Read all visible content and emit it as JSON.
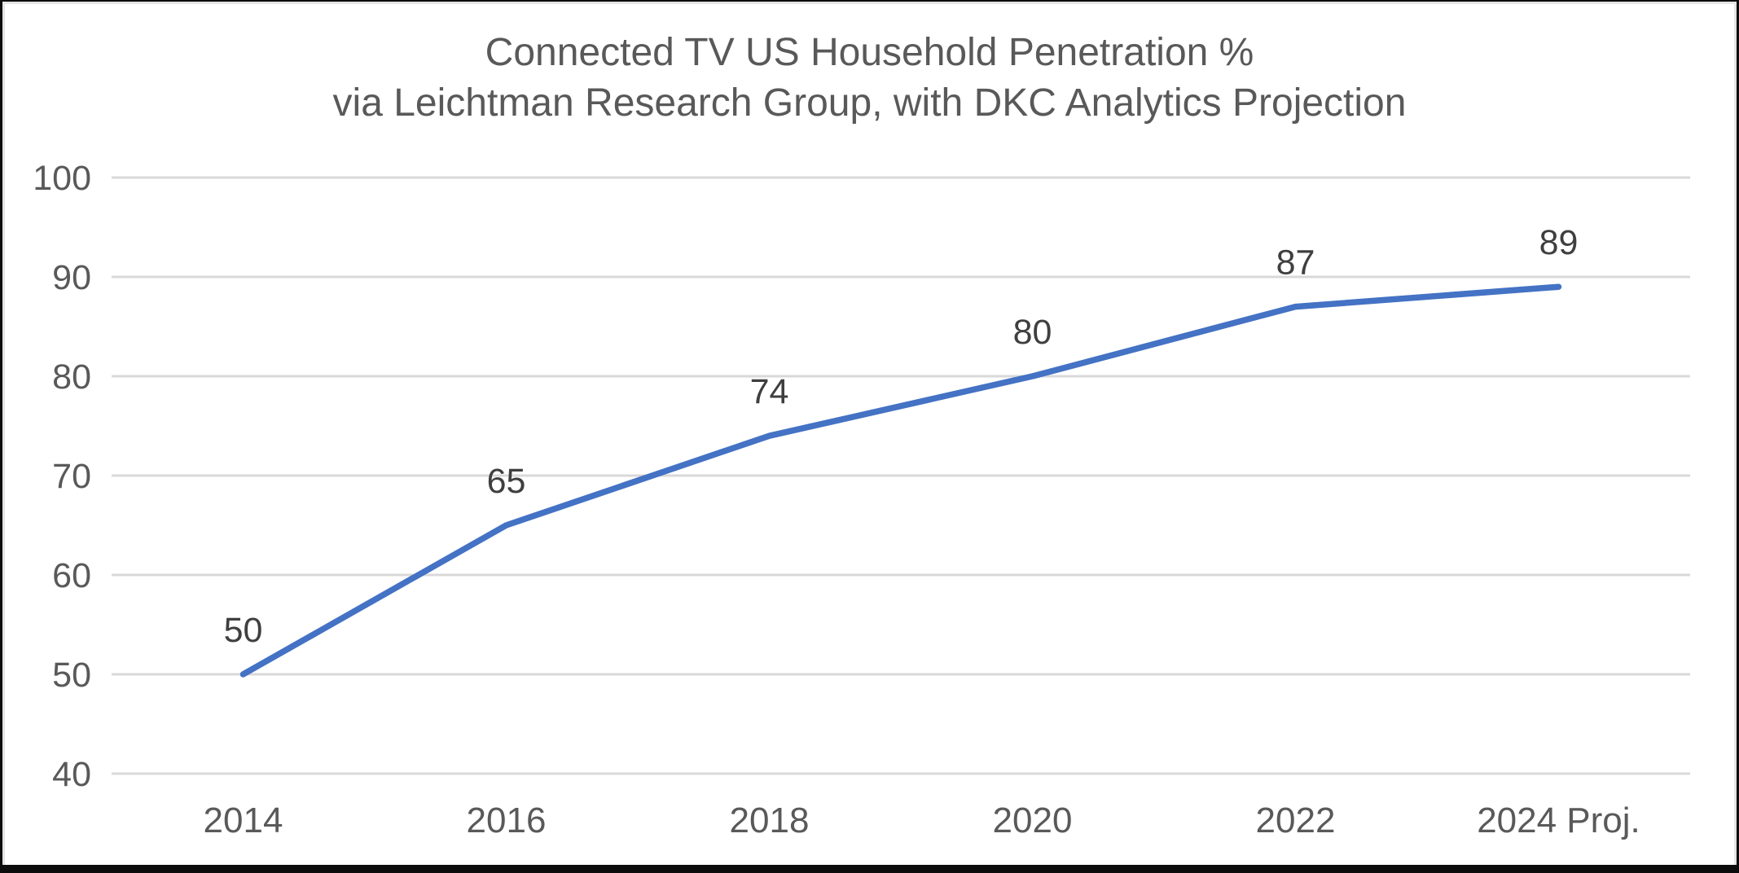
{
  "chart_data": {
    "type": "line",
    "title": "Connected TV US Household Penetration %",
    "subtitle": "via Leichtman Research Group, with DKC Analytics Projection",
    "categories": [
      "2014",
      "2016",
      "2018",
      "2020",
      "2022",
      "2024 Proj."
    ],
    "series": [
      {
        "name": "Connected TV US Household Penetration %",
        "values": [
          50,
          65,
          74,
          80,
          87,
          89
        ],
        "data_labels": [
          "50",
          "65",
          "74",
          "80",
          "87",
          "89"
        ]
      }
    ],
    "xlabel": "",
    "ylabel": "",
    "ylim": [
      40,
      100
    ],
    "yticks": [
      40,
      50,
      60,
      70,
      80,
      90,
      100
    ],
    "grid": "horizontal",
    "legend": "none",
    "colors": {
      "line": "#4472C4",
      "gridline": "#D9D9D9",
      "axis_text": "#595959",
      "title_text": "#595959",
      "data_label_text": "#3f3f3f",
      "frame": "#0c0c0c",
      "background": "#ffffff"
    }
  }
}
